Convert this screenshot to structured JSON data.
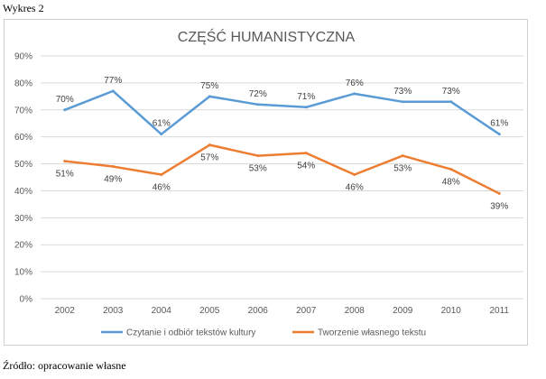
{
  "caption": "Wykres 2",
  "footer": "Źródło: opracowanie własne",
  "chart_data": {
    "type": "line",
    "title": "CZĘŚĆ HUMANISTYCZNA",
    "x": [
      "2002",
      "2003",
      "2004",
      "2005",
      "2006",
      "2007",
      "2008",
      "2009",
      "2010",
      "2011"
    ],
    "ylim": [
      0,
      90
    ],
    "yticks": [
      0,
      10,
      20,
      30,
      40,
      50,
      60,
      70,
      80,
      90
    ],
    "ytick_labels": [
      "0%",
      "10%",
      "20%",
      "30%",
      "40%",
      "50%",
      "60%",
      "70%",
      "80%",
      "90%"
    ],
    "grid": true,
    "legend_position": "bottom",
    "series": [
      {
        "name": "Czytanie i odbiór tekstów kultury",
        "color": "#5B9BD5",
        "values": [
          70,
          77,
          61,
          75,
          72,
          71,
          76,
          73,
          73,
          61
        ],
        "labels": [
          "70%",
          "77%",
          "61%",
          "75%",
          "72%",
          "71%",
          "76%",
          "73%",
          "73%",
          "61%"
        ]
      },
      {
        "name": "Tworzenie własnego tekstu",
        "color": "#ED7D31",
        "values": [
          51,
          49,
          46,
          57,
          53,
          54,
          46,
          53,
          48,
          39
        ],
        "labels": [
          "51%",
          "49%",
          "46%",
          "57%",
          "53%",
          "54%",
          "46%",
          "53%",
          "48%",
          "39%"
        ]
      }
    ]
  }
}
